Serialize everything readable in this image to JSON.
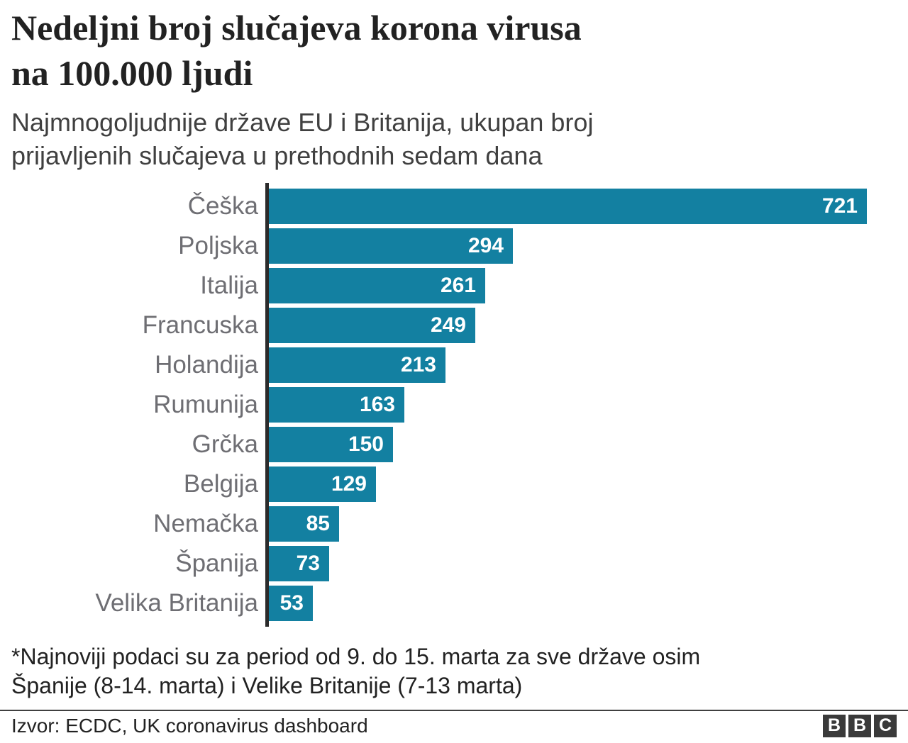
{
  "header": {
    "title_lines": [
      "Nedeljni broj slučajeva korona virusa",
      "na 100.000 ljudi"
    ],
    "subtitle_lines": [
      "Najmnogoljudnije države EU i Britanija, ukupan broj",
      "prijavljenih slučajeva u prethodnih sedam dana"
    ]
  },
  "chart_data": {
    "type": "bar",
    "orientation": "horizontal",
    "title": "Nedeljni broj slučajeva korona virusa na 100.000 ljudi",
    "xlabel": "",
    "ylabel": "",
    "categories": [
      "Češka",
      "Poljska",
      "Italija",
      "Francuska",
      "Holandija",
      "Rumunija",
      "Grčka",
      "Belgija",
      "Nemačka",
      "Španija",
      "Velika Britanija"
    ],
    "values": [
      721,
      294,
      261,
      249,
      213,
      163,
      150,
      129,
      85,
      73,
      53
    ],
    "xlim": [
      0,
      721
    ],
    "grid": false,
    "legend": false,
    "value_labels_position": "inside-end",
    "bar_color": "#1380A1",
    "value_label_color": "#FFFFFF",
    "category_label_color": "#6E6E73",
    "axis_color": "#2B2B2B"
  },
  "footnote_lines": [
    "*Najnoviji podaci su za period od 9. do 15. marta za sve države osim",
    "Španije (8-14. marta) i Velike Britanije (7-13 marta)"
  ],
  "source": {
    "label": "Izvor: ECDC, UK coronavirus dashboard"
  },
  "logo": {
    "letters": [
      "B",
      "B",
      "C"
    ],
    "square_color": "#3A3A3A"
  }
}
